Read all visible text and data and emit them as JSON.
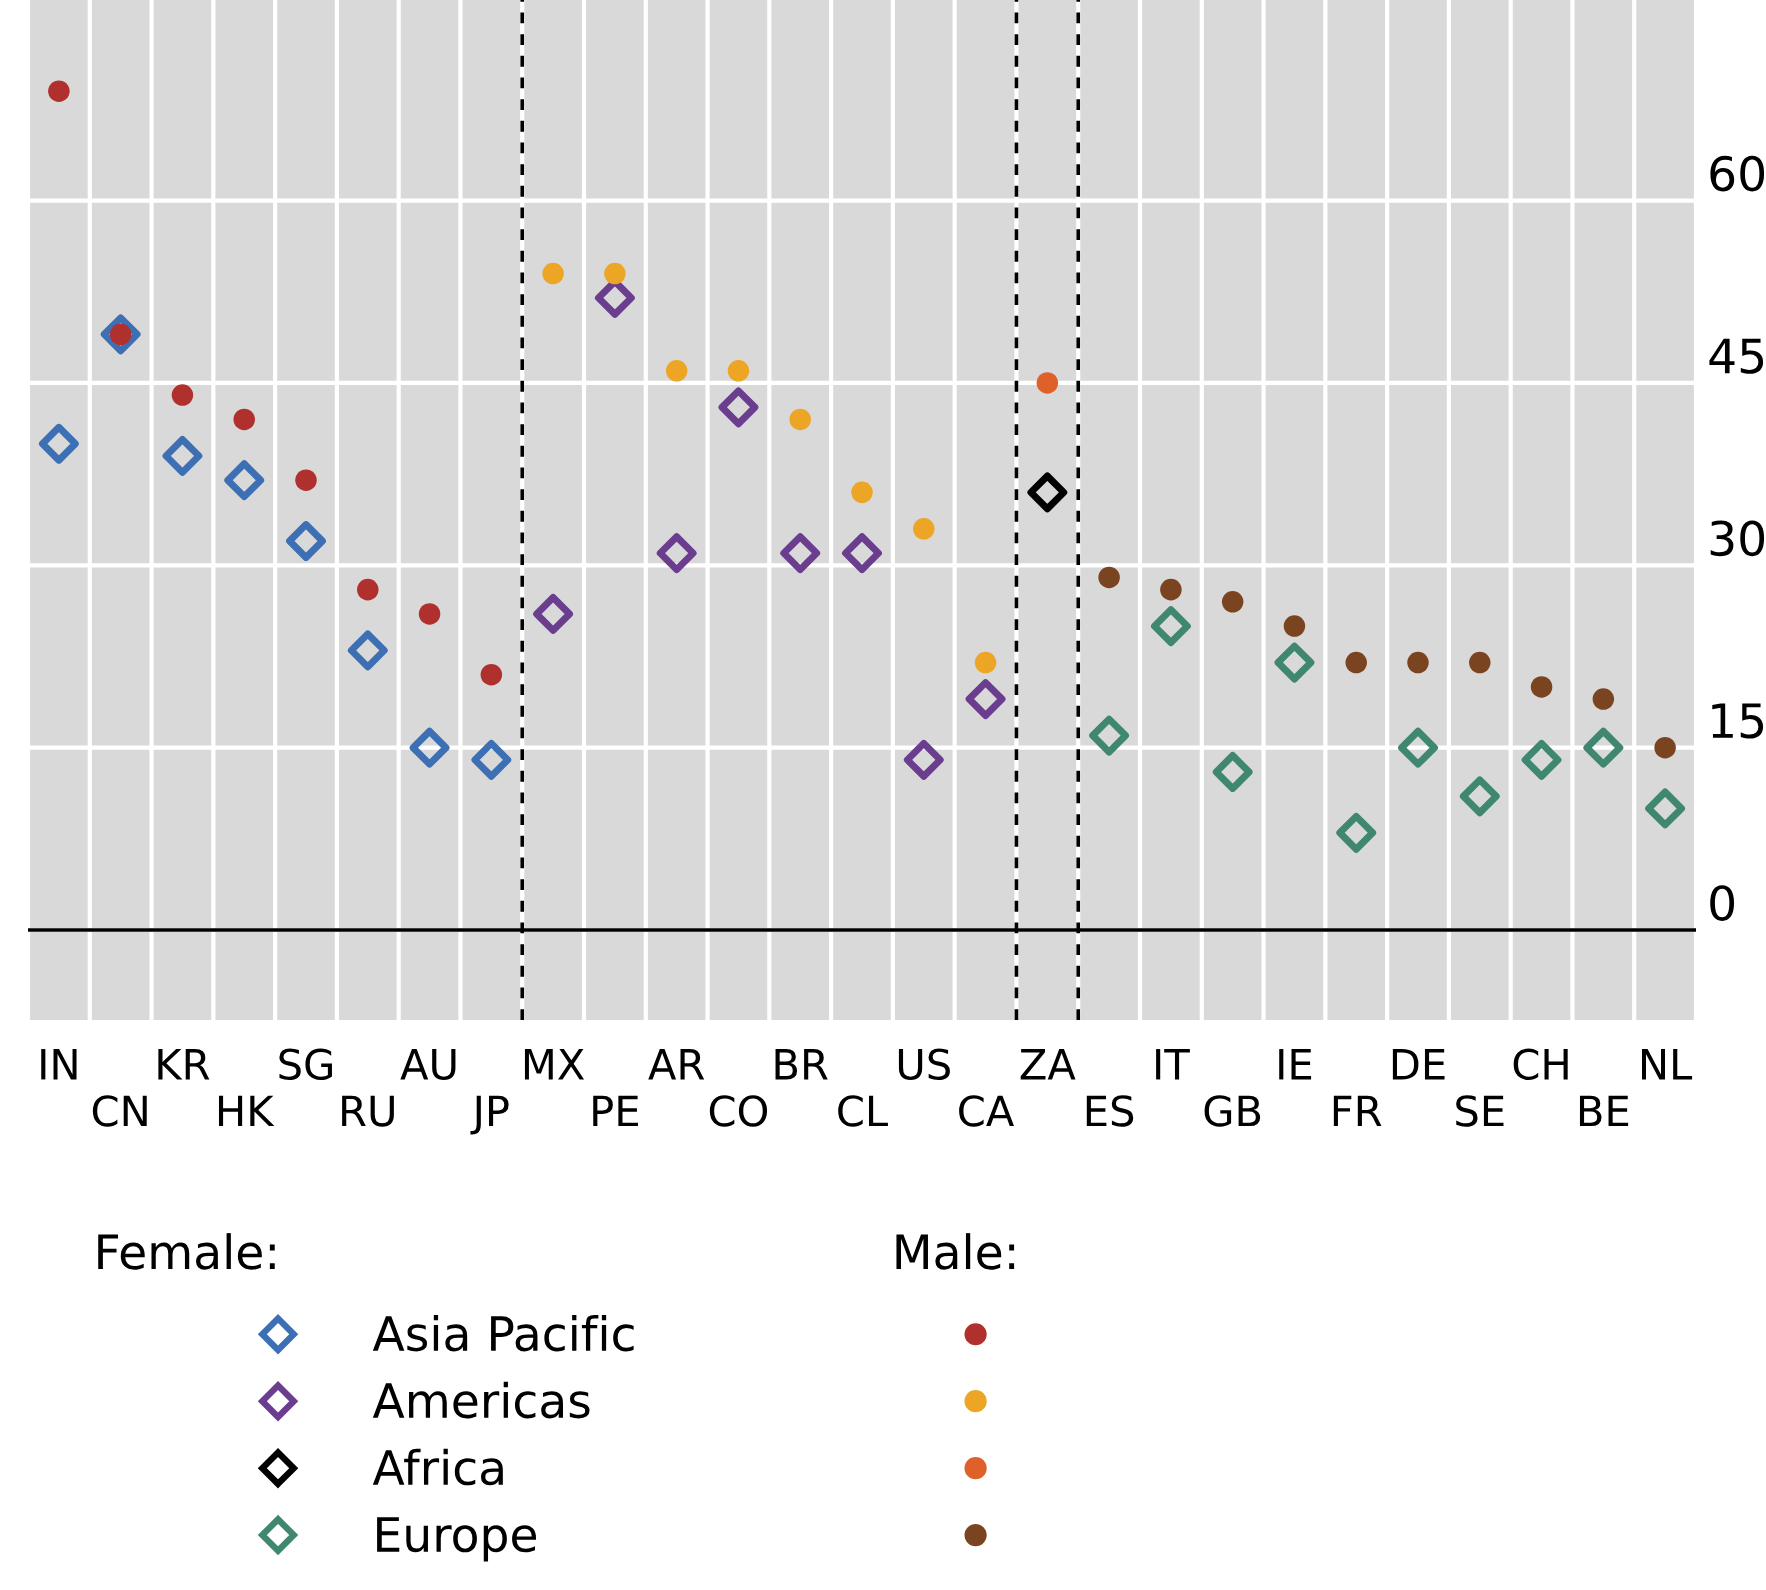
{
  "chart_data": {
    "type": "scatter",
    "categories": [
      "IN",
      "CN",
      "KR",
      "HK",
      "SG",
      "RU",
      "AU",
      "JP",
      "MX",
      "PE",
      "AR",
      "CO",
      "BR",
      "CL",
      "US",
      "CA",
      "ZA",
      "ES",
      "IT",
      "GB",
      "IE",
      "FR",
      "DE",
      "SE",
      "CH",
      "BE",
      "NL"
    ],
    "series": [
      {
        "name": "Asia Pacific",
        "marker": "diamond",
        "color": "#3d6fb4",
        "values": [
          40,
          49,
          39,
          37,
          32,
          23,
          15,
          14,
          null,
          null,
          null,
          null,
          null,
          null,
          null,
          null,
          null,
          null,
          null,
          null,
          null,
          null,
          null,
          null,
          null,
          null,
          null
        ]
      },
      {
        "name": "Americas",
        "marker": "diamond",
        "color": "#6a3d8f",
        "values": [
          null,
          null,
          null,
          null,
          null,
          null,
          null,
          null,
          26,
          52,
          31,
          43,
          31,
          31,
          14,
          19,
          null,
          null,
          null,
          null,
          null,
          null,
          null,
          null,
          null,
          null,
          null
        ]
      },
      {
        "name": "Africa",
        "marker": "diamond",
        "color": "#000000",
        "values": [
          null,
          null,
          null,
          null,
          null,
          null,
          null,
          null,
          null,
          null,
          null,
          null,
          null,
          null,
          null,
          null,
          36,
          null,
          null,
          null,
          null,
          null,
          null,
          null,
          null,
          null,
          null
        ]
      },
      {
        "name": "Europe",
        "marker": "diamond",
        "color": "#3f8770",
        "values": [
          null,
          null,
          null,
          null,
          null,
          null,
          null,
          null,
          null,
          null,
          null,
          null,
          null,
          null,
          null,
          null,
          null,
          16,
          25,
          13,
          22,
          8,
          15,
          11,
          14,
          15,
          10
        ]
      },
      {
        "marker": "circle",
        "color": "#b0302e",
        "values": [
          69,
          49,
          44,
          42,
          37,
          28,
          26,
          21,
          null,
          null,
          null,
          null,
          null,
          null,
          null,
          null,
          null,
          null,
          null,
          null,
          null,
          null,
          null,
          null,
          null,
          null,
          null
        ]
      },
      {
        "marker": "circle",
        "color": "#eda526",
        "values": [
          null,
          null,
          null,
          null,
          null,
          null,
          null,
          null,
          54,
          54,
          46,
          46,
          42,
          36,
          33,
          22,
          null,
          null,
          null,
          null,
          null,
          null,
          null,
          null,
          null,
          null,
          null
        ]
      },
      {
        "marker": "circle",
        "color": "#e0602a",
        "values": [
          null,
          null,
          null,
          null,
          null,
          null,
          null,
          null,
          null,
          null,
          null,
          null,
          null,
          null,
          null,
          null,
          45,
          null,
          null,
          null,
          null,
          null,
          null,
          null,
          null,
          null,
          null
        ]
      },
      {
        "marker": "circle",
        "color": "#7b4420",
        "values": [
          null,
          null,
          null,
          null,
          null,
          null,
          null,
          null,
          null,
          null,
          null,
          null,
          null,
          null,
          null,
          null,
          null,
          29,
          28,
          27,
          25,
          22,
          22,
          22,
          20,
          19,
          15
        ]
      }
    ],
    "ylim": [
      -7.4,
      76.5
    ],
    "yticks": [
      0,
      15,
      30,
      45,
      60
    ],
    "grid": true,
    "legend": "bottom",
    "annotations": [
      "Female:",
      "Male:"
    ],
    "ref_lines": [
      {
        "axis": "y",
        "value": 0,
        "color": "#000000",
        "line_style": "solid"
      }
    ]
  }
}
